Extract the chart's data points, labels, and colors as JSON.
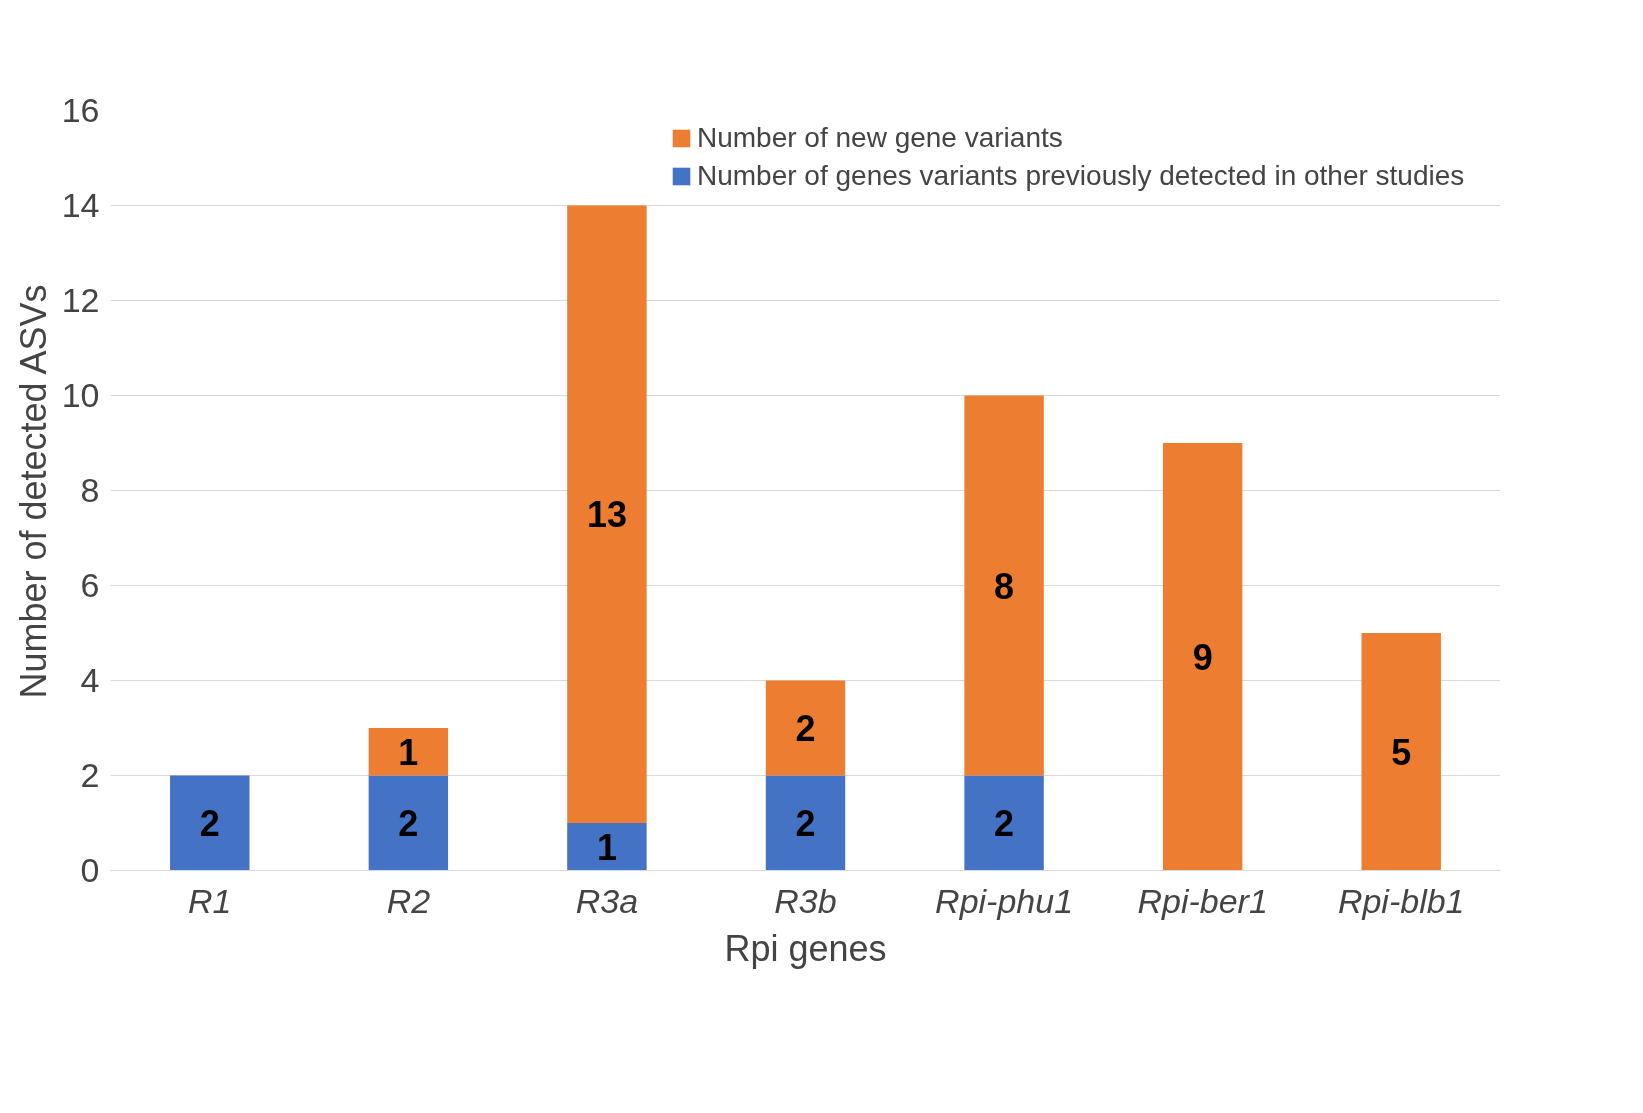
{
  "chart_data": {
    "type": "bar",
    "stacked": true,
    "xlabel": "Rpi genes",
    "ylabel": "Number of detected ASVs",
    "categories": [
      "R1",
      "R2",
      "R3a",
      "R3b",
      "Rpi-phu1",
      "Rpi-ber1",
      "Rpi-blb1"
    ],
    "series": [
      {
        "name": "Number of genes variants previously detected in other studies",
        "color": "#4472c4",
        "values": [
          2,
          2,
          1,
          2,
          2,
          0,
          0
        ],
        "value_labels": [
          "2",
          "2",
          "1",
          "2",
          "2",
          null,
          null
        ]
      },
      {
        "name": "Number of new gene variants",
        "color": "#ed7d31",
        "values": [
          0,
          1,
          13,
          2,
          8,
          9,
          5
        ],
        "value_labels": [
          null,
          "1",
          "13",
          "2",
          "8",
          "9",
          "5"
        ]
      }
    ],
    "ylim": [
      0,
      16
    ],
    "yticks": [
      0,
      2,
      4,
      6,
      8,
      10,
      12,
      14,
      16
    ],
    "grid": "y",
    "legend": "top right"
  }
}
